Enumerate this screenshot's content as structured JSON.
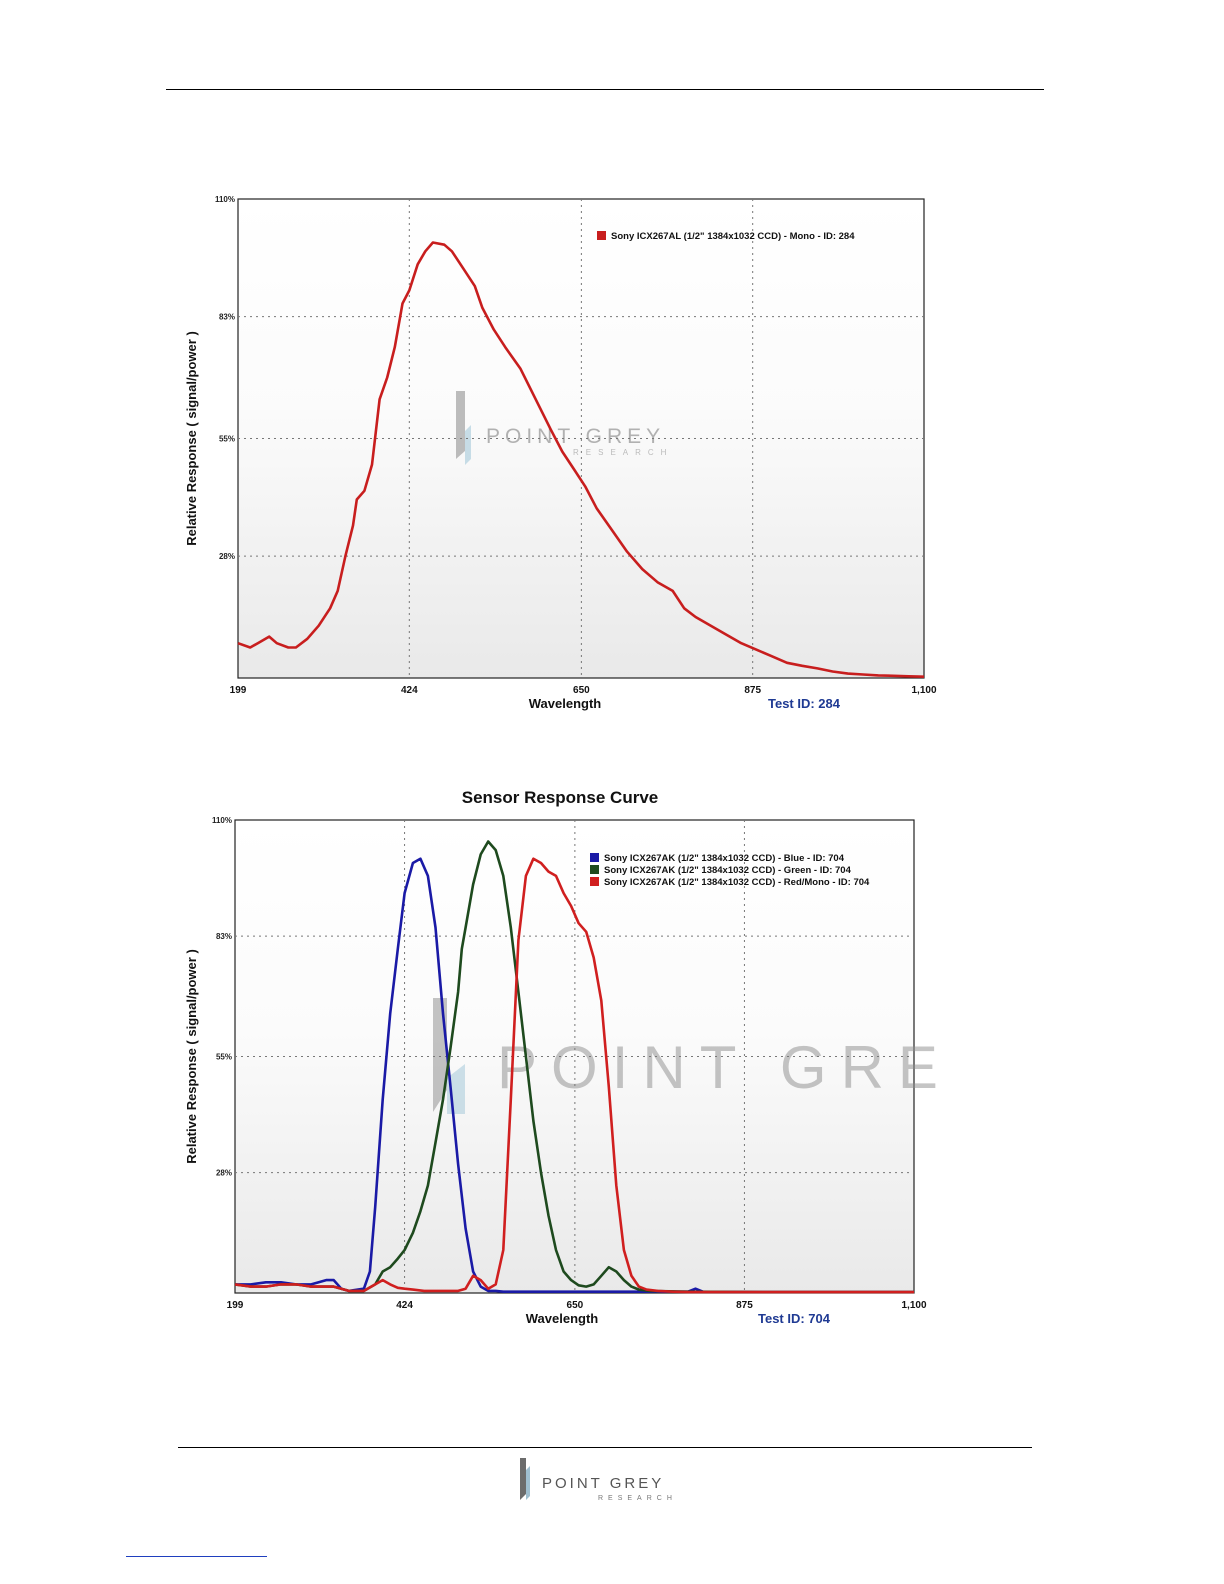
{
  "page": {
    "footer_logo": {
      "word1": "POINT GREY",
      "word2": "RESEARCH"
    }
  },
  "chart_data": [
    {
      "type": "line",
      "title": "",
      "xlabel": "Wavelength",
      "ylabel": "Relative Response ( signal/power )",
      "x_ticks": [
        "199",
        "424",
        "650",
        "875",
        "1,100"
      ],
      "y_ticks": [
        "110%",
        "83%",
        "55%",
        "28%"
      ],
      "xlim": [
        199,
        1100
      ],
      "ylim": [
        0,
        110
      ],
      "grid": true,
      "legend_position": "top-right",
      "test_id_label": "Test ID: 284",
      "watermark": {
        "word1": "POINT GREY",
        "word2": "RESEARCH"
      },
      "series": [
        {
          "name": "Sony ICX267AL (1/2\" 1384x1032 CCD) - Mono - ID: 284",
          "color": "#c81e1e",
          "x": [
            199,
            215,
            225,
            240,
            250,
            265,
            275,
            290,
            305,
            320,
            330,
            340,
            350,
            355,
            365,
            375,
            385,
            395,
            405,
            415,
            424,
            435,
            445,
            455,
            470,
            480,
            495,
            510,
            520,
            535,
            550,
            570,
            590,
            610,
            625,
            640,
            655,
            670,
            690,
            710,
            730,
            750,
            770,
            785,
            800,
            820,
            840,
            860,
            880,
            900,
            920,
            940,
            960,
            980,
            1000,
            1020,
            1040,
            1060,
            1080,
            1100
          ],
          "y": [
            8,
            7,
            8,
            9.5,
            8,
            7,
            7,
            9,
            12,
            16,
            20,
            28,
            35,
            41,
            43,
            49,
            64,
            69,
            76,
            86,
            89,
            95,
            98,
            100,
            99.5,
            98,
            94,
            90,
            85,
            80,
            76,
            71,
            64,
            57,
            52,
            48,
            44,
            39,
            34,
            29,
            25,
            22,
            20,
            16,
            14,
            12,
            10,
            8,
            6.5,
            5,
            3.5,
            2.8,
            2.2,
            1.5,
            1.0,
            0.8,
            0.6,
            0.5,
            0.4,
            0.3
          ]
        }
      ]
    },
    {
      "type": "line",
      "title": "Sensor Response Curve",
      "xlabel": "Wavelength",
      "ylabel": "Relative Response ( signal/power )",
      "x_ticks": [
        "199",
        "424",
        "650",
        "875",
        "1,100"
      ],
      "y_ticks": [
        "110%",
        "83%",
        "55%",
        "28%"
      ],
      "xlim": [
        199,
        1100
      ],
      "ylim": [
        0,
        110
      ],
      "grid": true,
      "legend_position": "top-right",
      "test_id_label": "Test ID: 704",
      "watermark": {
        "word1": "POINT GRE"
      },
      "series": [
        {
          "name": "Sony ICX267AK (1/2\" 1384x1032 CCD) - Blue  - ID: 704",
          "color": "#1a1aa6",
          "x": [
            199,
            220,
            240,
            260,
            280,
            300,
            310,
            320,
            330,
            340,
            350,
            370,
            378,
            385,
            395,
            405,
            415,
            424,
            435,
            445,
            455,
            465,
            475,
            485,
            495,
            505,
            515,
            525,
            535,
            545,
            555,
            600,
            700,
            800,
            810,
            820,
            900,
            1000,
            1100
          ],
          "y": [
            2,
            2,
            2.5,
            2.5,
            2,
            2,
            2.5,
            3,
            3,
            1,
            0.5,
            1,
            5,
            20,
            45,
            65,
            80,
            93,
            100,
            101,
            97,
            85,
            65,
            48,
            30,
            15,
            5,
            1.5,
            0.5,
            0.5,
            0.3,
            0.3,
            0.3,
            0.3,
            1,
            0.3,
            0.2,
            0.2,
            0.2
          ]
        },
        {
          "name": "Sony ICX267AK (1/2\" 1384x1032 CCD) - Green  - ID: 704",
          "color": "#1e4a1e",
          "x": [
            199,
            220,
            240,
            260,
            280,
            300,
            330,
            350,
            370,
            385,
            395,
            405,
            415,
            424,
            435,
            445,
            455,
            465,
            475,
            485,
            495,
            500,
            505,
            515,
            525,
            535,
            545,
            555,
            565,
            575,
            585,
            595,
            605,
            615,
            625,
            635,
            645,
            655,
            665,
            675,
            685,
            695,
            705,
            715,
            725,
            735,
            750,
            800,
            900,
            1000,
            1100
          ],
          "y": [
            2,
            1.5,
            1.5,
            2,
            2,
            1.5,
            1.5,
            0.5,
            0.5,
            2,
            5,
            6,
            8,
            10,
            14,
            19,
            25,
            35,
            45,
            57,
            70,
            80,
            85,
            95,
            102,
            105,
            103,
            97,
            85,
            70,
            55,
            40,
            28,
            18,
            10,
            5,
            3,
            1.8,
            1.5,
            2,
            4,
            6,
            5,
            3,
            1.5,
            0.8,
            0.5,
            0.3,
            0.2,
            0.2,
            0.2
          ]
        },
        {
          "name": "Sony ICX267AK (1/2\" 1384x1032 CCD) - Red/Mono - ID: 704",
          "color": "#d01f1f",
          "x": [
            199,
            220,
            240,
            260,
            280,
            300,
            330,
            350,
            370,
            385,
            395,
            405,
            415,
            424,
            435,
            450,
            470,
            485,
            495,
            505,
            515,
            525,
            535,
            545,
            555,
            565,
            575,
            585,
            595,
            605,
            615,
            625,
            635,
            645,
            655,
            665,
            675,
            685,
            695,
            705,
            715,
            725,
            735,
            745,
            760,
            780,
            800,
            900,
            1000,
            1100
          ],
          "y": [
            2,
            1.5,
            1.5,
            2,
            2,
            1.5,
            1.5,
            0.5,
            0.5,
            2,
            3,
            2,
            1.2,
            1,
            0.8,
            0.5,
            0.5,
            0.5,
            0.5,
            1,
            4,
            3,
            1,
            2,
            10,
            45,
            82,
            97,
            101,
            100,
            98,
            97,
            93,
            90,
            86,
            84,
            78,
            68,
            48,
            25,
            10,
            4,
            1.5,
            0.8,
            0.5,
            0.3,
            0.2,
            0.2,
            0.2,
            0.2
          ]
        }
      ]
    }
  ]
}
